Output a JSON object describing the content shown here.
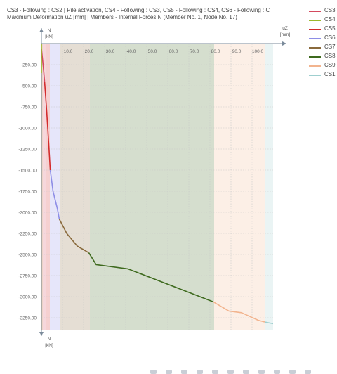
{
  "title_line1": "CS3 - Following : CS2 | Pile activation, CS4 - Following : CS3, CS5 - Following : CS4, CS6 - Following : C",
  "title_line2": "Maximum Deformation uZ [mm] | Members - Internal Forces N (Member No. 1, Node No. 17)",
  "legend": [
    {
      "label": "CS3",
      "color": "#d44a5e"
    },
    {
      "label": "CS4",
      "color": "#9bb82b"
    },
    {
      "label": "CS5",
      "color": "#d32b2b"
    },
    {
      "label": "CS6",
      "color": "#8e8ee6"
    },
    {
      "label": "CS7",
      "color": "#8a6a3c"
    },
    {
      "label": "CS8",
      "color": "#3e6a1e"
    },
    {
      "label": "CS9",
      "color": "#f2b48e"
    },
    {
      "label": "CS1",
      "color": "#9fcfcf"
    }
  ],
  "chart_data": {
    "type": "area",
    "xlabel": "uZ",
    "xunit": "[mm]",
    "ylabel": "N",
    "yunit": "[kN]",
    "ylabel_bottom": "N",
    "yunit_bottom": "[kN]",
    "xlim": [
      0,
      110
    ],
    "ylim": [
      -3400,
      0
    ],
    "x_ticks": [
      "10.0",
      "20.0",
      "30.0",
      "40.0",
      "50.0",
      "60.0",
      "70.0",
      "80.0",
      "90.0",
      "100.0"
    ],
    "y_ticks": [
      "-250.00",
      "-500.00",
      "-750.00",
      "-1000.00",
      "-1250.00",
      "-1500.00",
      "-1750.00",
      "-2000.00",
      "-2250.00",
      "-2500.00",
      "-2750.00",
      "-3000.00",
      "-3250.00"
    ],
    "series": [
      {
        "name": "CS3",
        "color": "#d44a5e",
        "band": [
          0,
          2
        ],
        "points": [
          [
            0,
            -60
          ],
          [
            0.8,
            -250
          ],
          [
            1.5,
            -450
          ]
        ]
      },
      {
        "name": "CS4",
        "color": "#9bb82b",
        "band": [
          0,
          0.5
        ],
        "points": [
          [
            0,
            0
          ],
          [
            0,
            -350
          ]
        ]
      },
      {
        "name": "CS5",
        "color": "#d32b2b",
        "band": [
          2,
          4
        ],
        "points": [
          [
            1.5,
            -450
          ],
          [
            2.5,
            -800
          ],
          [
            3.5,
            -1200
          ],
          [
            4.2,
            -1500
          ]
        ]
      },
      {
        "name": "CS6",
        "color": "#8e8ee6",
        "band": [
          4,
          9
        ],
        "points": [
          [
            4.2,
            -1500
          ],
          [
            5.5,
            -1750
          ],
          [
            7.5,
            -1950
          ],
          [
            8.5,
            -2080
          ]
        ]
      },
      {
        "name": "CS7",
        "color": "#8a6a3c",
        "band": [
          9,
          23
        ],
        "points": [
          [
            8.5,
            -2080
          ],
          [
            12,
            -2250
          ],
          [
            17,
            -2400
          ],
          [
            22.5,
            -2480
          ]
        ]
      },
      {
        "name": "CS8",
        "color": "#3e6a1e",
        "band": [
          23,
          82
        ],
        "points": [
          [
            22.5,
            -2480
          ],
          [
            26,
            -2620
          ],
          [
            41,
            -2670
          ],
          [
            81.5,
            -3060
          ]
        ]
      },
      {
        "name": "CS9",
        "color": "#f2b48e",
        "band": [
          82,
          106
        ],
        "points": [
          [
            81.5,
            -3060
          ],
          [
            89,
            -3170
          ],
          [
            95,
            -3190
          ],
          [
            103,
            -3280
          ],
          [
            106,
            -3300
          ]
        ]
      },
      {
        "name": "CS1",
        "color": "#9fcfcf",
        "band": [
          106,
          110
        ],
        "points": [
          [
            106,
            -3300
          ],
          [
            110,
            -3320
          ]
        ]
      }
    ]
  },
  "toolbar": {
    "icons": [
      "tool-icon",
      "tool-icon",
      "tool-icon",
      "tool-icon",
      "tool-icon",
      "tool-icon",
      "tool-icon",
      "tool-icon",
      "tool-icon",
      "tool-icon",
      "tool-icon"
    ]
  }
}
